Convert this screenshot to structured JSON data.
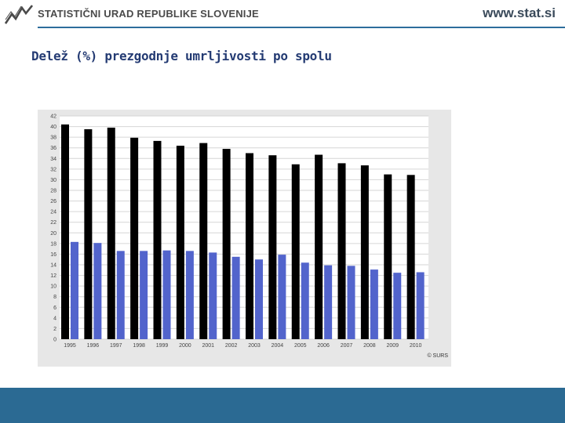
{
  "header": {
    "org_name": "STATISTIČNI URAD REPUBLIKE SLOVENIJE",
    "site_url": "www.stat.si"
  },
  "page": {
    "title": "Delež (%) prezgodnje umrljivosti po spolu"
  },
  "colors": {
    "brand_blue": "#2d6d9c",
    "footer": "#2b6a93",
    "series_1": "#000000",
    "series_2": "#5264cc",
    "panel_bg": "#e7e7e7"
  },
  "chart_data": {
    "type": "bar",
    "title": "",
    "xlabel": "",
    "ylabel": "",
    "categories": [
      "1995",
      "1996",
      "1997",
      "1998",
      "1999",
      "2000",
      "2001",
      "2002",
      "2003",
      "2004",
      "2005",
      "2006",
      "2007",
      "2008",
      "2009",
      "2010"
    ],
    "series": [
      {
        "values": [
          40.4,
          39.5,
          39.8,
          37.9,
          37.3,
          36.4,
          36.9,
          35.8,
          35.0,
          34.6,
          32.9,
          34.7,
          33.1,
          32.7,
          31.0,
          30.9
        ]
      },
      {
        "values": [
          18.3,
          18.1,
          16.6,
          16.6,
          16.7,
          16.6,
          16.3,
          15.5,
          15.0,
          15.9,
          14.4,
          13.9,
          13.8,
          13.1,
          12.5,
          12.6
        ]
      }
    ],
    "yticks": [
      0,
      2,
      4,
      6,
      8,
      10,
      12,
      14,
      16,
      18,
      20,
      22,
      24,
      26,
      28,
      30,
      32,
      34,
      36,
      38,
      40,
      42
    ],
    "ylim": [
      0,
      42
    ],
    "grid": true,
    "legend": "none",
    "credit": "© SURS"
  }
}
